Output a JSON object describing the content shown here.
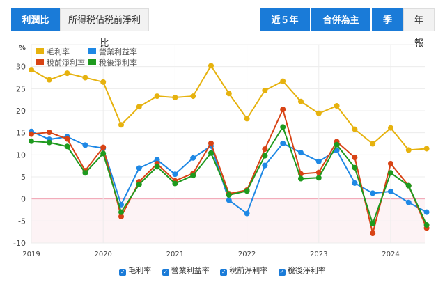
{
  "tabs_left": [
    {
      "label": "利潤比率",
      "active": true
    },
    {
      "label": "所得税佔税前淨利比",
      "active": false
    }
  ],
  "controls": {
    "period": "近５年",
    "consolidation": "合併為主",
    "quarterly": "季報",
    "annual": "年報",
    "chevron": "chevron-down-icon"
  },
  "chart_data": {
    "type": "line",
    "ylabel": "%",
    "ylim": [
      -10,
      35
    ],
    "yticks": [
      -10,
      -5,
      0,
      5,
      10,
      15,
      20,
      25,
      30
    ],
    "xticks": [
      "2019",
      "2020",
      "2021",
      "2022",
      "2023",
      "2024"
    ],
    "x": [
      "2019Q1",
      "2019Q2",
      "2019Q3",
      "2019Q4",
      "2020Q1",
      "2020Q2",
      "2020Q3",
      "2020Q4",
      "2021Q1",
      "2021Q2",
      "2021Q3",
      "2021Q4",
      "2022Q1",
      "2022Q2",
      "2022Q3",
      "2022Q4",
      "2023Q1",
      "2023Q2",
      "2023Q3",
      "2023Q4",
      "2024Q1",
      "2024Q2",
      "2024Q3"
    ],
    "series": [
      {
        "name": "毛利率",
        "color": "#e6b20e",
        "values": [
          29.3,
          27.0,
          28.5,
          27.5,
          26.5,
          16.8,
          20.9,
          23.3,
          23.0,
          23.3,
          30.2,
          23.9,
          18.2,
          24.6,
          26.7,
          22.1,
          19.4,
          21.1,
          15.8,
          12.5,
          16.1,
          11.1,
          11.4
        ]
      },
      {
        "name": "營業利益率",
        "color": "#1e88e5",
        "values": [
          15.3,
          13.5,
          14.1,
          12.2,
          11.5,
          -1.3,
          7.0,
          8.9,
          5.6,
          9.3,
          12.0,
          -0.3,
          -3.3,
          7.6,
          12.6,
          10.5,
          8.5,
          11.0,
          3.6,
          1.3,
          1.7,
          -0.8,
          -3.0
        ]
      },
      {
        "name": "稅前淨利率",
        "color": "#d84315",
        "values": [
          14.7,
          15.1,
          13.6,
          6.4,
          11.7,
          -4.0,
          3.9,
          8.0,
          4.1,
          5.8,
          12.6,
          1.2,
          2.0,
          11.3,
          20.3,
          5.7,
          6.0,
          13.0,
          9.4,
          -7.8,
          8.0,
          3.0,
          -6.6
        ]
      },
      {
        "name": "稅後淨利率",
        "color": "#1e9a1e",
        "values": [
          13.1,
          12.8,
          11.9,
          5.9,
          10.3,
          -3.0,
          3.3,
          7.3,
          3.5,
          5.3,
          10.4,
          0.9,
          1.8,
          9.8,
          16.3,
          4.6,
          4.8,
          12.3,
          7.1,
          -5.6,
          5.9,
          3.0,
          -5.9
        ]
      }
    ],
    "legend": "top-left",
    "grid": true
  },
  "legend_bottom": [
    {
      "label": "毛利率"
    },
    {
      "label": "營業利益率"
    },
    {
      "label": "稅前淨利率"
    },
    {
      "label": "稅後淨利率"
    }
  ]
}
